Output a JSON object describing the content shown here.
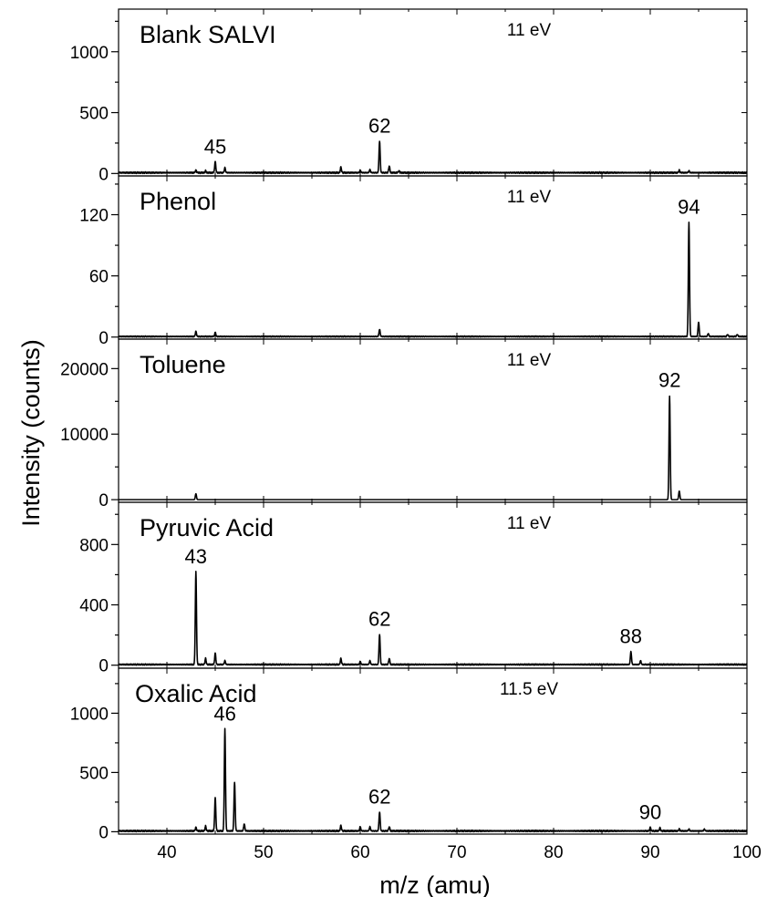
{
  "chart_data": {
    "type": "line",
    "xlabel": "m/z (amu)",
    "ylabel": "Intensity (counts)",
    "xlim": [
      35,
      100
    ],
    "x_ticks": [
      40,
      50,
      60,
      70,
      80,
      90,
      100
    ],
    "line_color": "#000000",
    "panels": [
      {
        "title": "Blank SALVI",
        "energy": "11 eV",
        "ylim": [
          -20,
          1350
        ],
        "y_ticks": [
          0,
          500,
          1000
        ],
        "noise": 12,
        "peaks": [
          [
            43,
            20
          ],
          [
            44,
            15
          ],
          [
            45,
            90
          ],
          [
            46,
            40
          ],
          [
            58,
            45
          ],
          [
            60,
            20
          ],
          [
            61,
            25
          ],
          [
            62,
            260
          ],
          [
            63,
            55
          ],
          [
            64,
            15
          ],
          [
            93,
            20
          ],
          [
            94,
            15
          ]
        ],
        "peak_labels": [
          {
            "mz": 45,
            "text": "45"
          },
          {
            "mz": 62,
            "text": "62"
          }
        ]
      },
      {
        "title": "Phenol",
        "energy": "11 eV",
        "ylim": [
          -2,
          158
        ],
        "y_ticks": [
          0,
          60,
          120
        ],
        "noise": 1,
        "peaks": [
          [
            43,
            5
          ],
          [
            45,
            4
          ],
          [
            62,
            7
          ],
          [
            94,
            112
          ],
          [
            95,
            14
          ],
          [
            96,
            3
          ],
          [
            98,
            2
          ],
          [
            99,
            2
          ]
        ],
        "peak_labels": [
          {
            "mz": 94,
            "text": "94"
          }
        ]
      },
      {
        "title": "Toluene",
        "energy": "11 eV",
        "ylim": [
          -400,
          24500
        ],
        "y_ticks": [
          0,
          10000,
          20000
        ],
        "noise": 0,
        "peaks": [
          [
            43,
            900
          ],
          [
            92,
            15800
          ],
          [
            93,
            1300
          ]
        ],
        "peak_labels": [
          {
            "mz": 92,
            "text": "92"
          }
        ]
      },
      {
        "title": "Pyruvic Acid",
        "energy": "11 eV",
        "ylim": [
          -20,
          1080
        ],
        "y_ticks": [
          0,
          400,
          800
        ],
        "noise": 8,
        "peaks": [
          [
            43,
            615
          ],
          [
            44,
            40
          ],
          [
            45,
            75
          ],
          [
            46,
            25
          ],
          [
            58,
            40
          ],
          [
            60,
            20
          ],
          [
            61,
            25
          ],
          [
            62,
            200
          ],
          [
            63,
            40
          ],
          [
            88,
            85
          ],
          [
            89,
            25
          ]
        ],
        "peak_labels": [
          {
            "mz": 43,
            "text": "43"
          },
          {
            "mz": 62,
            "text": "62"
          },
          {
            "mz": 88,
            "text": "88"
          }
        ]
      },
      {
        "title": "Oxalic Acid",
        "energy": "11.5 eV",
        "ylim": [
          -20,
          1380
        ],
        "y_ticks": [
          0,
          500,
          1000
        ],
        "noise": 12,
        "peaks": [
          [
            43,
            30
          ],
          [
            44,
            40
          ],
          [
            45,
            280
          ],
          [
            46,
            860
          ],
          [
            47,
            410
          ],
          [
            48,
            60
          ],
          [
            58,
            45
          ],
          [
            60,
            35
          ],
          [
            61,
            35
          ],
          [
            62,
            160
          ],
          [
            63,
            35
          ],
          [
            90,
            30
          ],
          [
            91,
            25
          ],
          [
            93,
            15
          ],
          [
            94,
            15
          ],
          [
            95.6,
            15
          ]
        ],
        "peak_labels": [
          {
            "mz": 46,
            "text": "46"
          },
          {
            "mz": 62,
            "text": "62"
          },
          {
            "mz": 90,
            "text": "90"
          }
        ]
      }
    ]
  }
}
